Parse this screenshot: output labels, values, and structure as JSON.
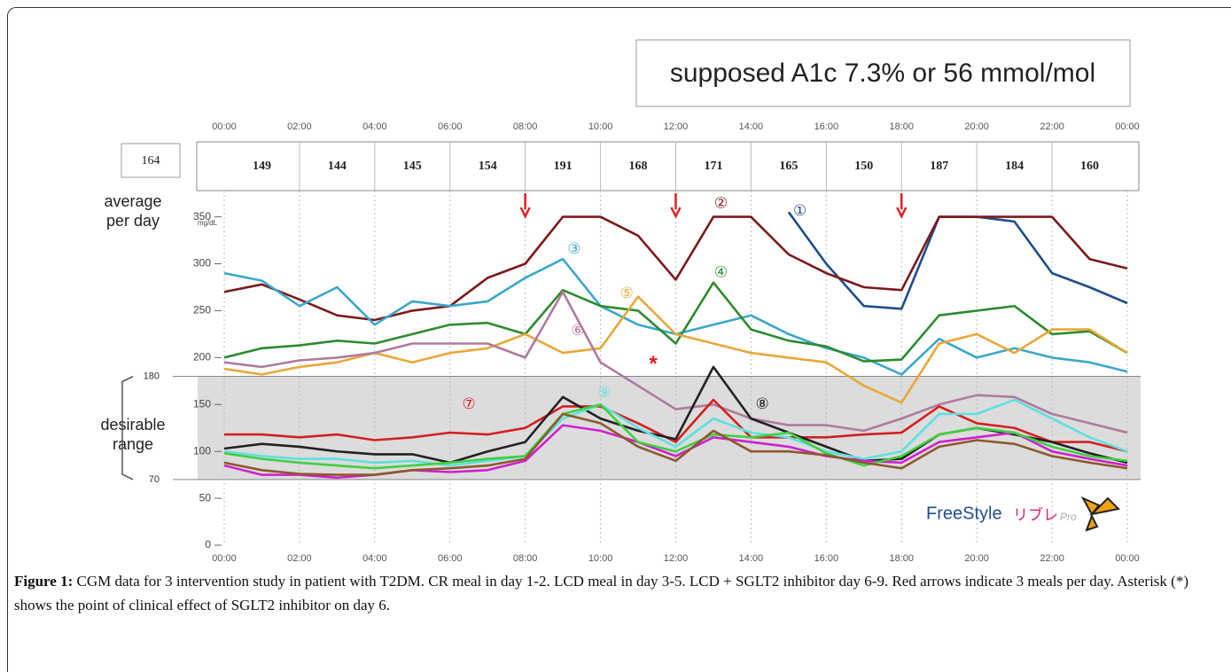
{
  "chart_data": {
    "type": "line",
    "headline": "supposed A1c 7.3% or 56 mmol/mol",
    "row_label": "average per day",
    "y_unit": "mg/dL",
    "range_label": "desirable range",
    "overall_average": 164,
    "period_averages": [
      149,
      144,
      145,
      154,
      191,
      168,
      171,
      165,
      150,
      187,
      184,
      160
    ],
    "target_range": [
      70,
      180
    ],
    "meal_arrows": [
      8,
      12,
      18
    ],
    "asterisk": "*",
    "logo": {
      "brand": "FreeStyle",
      "product": "リブレ",
      "suffix": "Pro"
    },
    "x": [
      0,
      1,
      2,
      3,
      4,
      5,
      6,
      7,
      8,
      9,
      10,
      11,
      12,
      13,
      14,
      15,
      16,
      17,
      18,
      19,
      20,
      21,
      22,
      23,
      24
    ],
    "xlim": [
      0,
      24
    ],
    "xticks": [
      {
        "value": 0,
        "label": "00:00"
      },
      {
        "value": 2,
        "label": "02:00"
      },
      {
        "value": 4,
        "label": "04:00"
      },
      {
        "value": 6,
        "label": "06:00"
      },
      {
        "value": 8,
        "label": "08:00"
      },
      {
        "value": 10,
        "label": "10:00"
      },
      {
        "value": 12,
        "label": "12:00"
      },
      {
        "value": 14,
        "label": "14:00"
      },
      {
        "value": 16,
        "label": "16:00"
      },
      {
        "value": 18,
        "label": "18:00"
      },
      {
        "value": 20,
        "label": "20:00"
      },
      {
        "value": 22,
        "label": "22:00"
      },
      {
        "value": 24,
        "label": "00:00"
      }
    ],
    "ylim": [
      0,
      378
    ],
    "yticks": [
      0,
      50,
      100,
      150,
      200,
      250,
      300,
      350
    ],
    "series": [
      {
        "name": "①",
        "color": "#1f4e8c",
        "values": [
          null,
          null,
          null,
          null,
          null,
          null,
          null,
          null,
          null,
          null,
          null,
          null,
          null,
          null,
          null,
          355,
          300,
          255,
          252,
          350,
          350,
          345,
          290,
          275,
          258
        ]
      },
      {
        "name": "②",
        "color": "#7b1a1a",
        "values": [
          270,
          278,
          262,
          245,
          240,
          250,
          255,
          285,
          300,
          350,
          350,
          330,
          283,
          350,
          350,
          310,
          290,
          275,
          272,
          350,
          350,
          350,
          350,
          305,
          295
        ]
      },
      {
        "name": "③",
        "color": "#3ba7c9",
        "values": [
          290,
          282,
          255,
          275,
          235,
          260,
          255,
          260,
          285,
          305,
          255,
          235,
          225,
          235,
          245,
          225,
          210,
          200,
          182,
          220,
          200,
          210,
          200,
          195,
          185
        ]
      },
      {
        "name": "④",
        "color": "#2e8b2e",
        "values": [
          200,
          210,
          213,
          218,
          215,
          225,
          235,
          237,
          225,
          272,
          255,
          250,
          215,
          280,
          230,
          218,
          212,
          196,
          198,
          245,
          250,
          255,
          225,
          228,
          205
        ]
      },
      {
        "name": "⑤",
        "color": "#e8a838",
        "values": [
          188,
          182,
          190,
          195,
          205,
          195,
          205,
          210,
          225,
          205,
          210,
          265,
          225,
          215,
          205,
          200,
          195,
          170,
          152,
          215,
          225,
          205,
          230,
          230,
          205
        ]
      },
      {
        "name": "⑥",
        "color": "#b07aa0",
        "values": [
          195,
          190,
          197,
          200,
          205,
          215,
          215,
          215,
          200,
          270,
          195,
          170,
          145,
          150,
          135,
          128,
          128,
          122,
          135,
          150,
          160,
          158,
          140,
          130,
          120
        ]
      },
      {
        "name": "⑦",
        "color": "#d42020",
        "values": [
          118,
          118,
          115,
          118,
          112,
          115,
          120,
          118,
          125,
          148,
          148,
          130,
          110,
          155,
          115,
          115,
          115,
          118,
          120,
          148,
          130,
          125,
          110,
          110,
          100
        ]
      },
      {
        "name": "⑧",
        "color": "#222222",
        "values": [
          103,
          108,
          105,
          100,
          97,
          97,
          88,
          100,
          110,
          158,
          135,
          122,
          113,
          190,
          135,
          120,
          105,
          90,
          92,
          118,
          125,
          118,
          110,
          98,
          88
        ]
      },
      {
        "name": "⑨",
        "color": "#5fe0e0",
        "values": [
          100,
          95,
          92,
          92,
          88,
          90,
          85,
          90,
          95,
          135,
          150,
          125,
          105,
          135,
          120,
          115,
          100,
          92,
          100,
          140,
          140,
          155,
          135,
          115,
          100
        ]
      },
      {
        "color": "#d020d0",
        "values": [
          85,
          75,
          75,
          72,
          75,
          80,
          78,
          80,
          90,
          128,
          122,
          110,
          95,
          115,
          110,
          105,
          95,
          90,
          88,
          110,
          115,
          120,
          100,
          92,
          85
        ]
      },
      {
        "color": "#40d040",
        "values": [
          98,
          92,
          88,
          85,
          82,
          85,
          88,
          92,
          95,
          140,
          150,
          110,
          100,
          118,
          115,
          120,
          98,
          85,
          95,
          118,
          125,
          120,
          105,
          95,
          90
        ]
      },
      {
        "color": "#8b5a2b",
        "values": [
          88,
          80,
          76,
          75,
          75,
          80,
          82,
          85,
          92,
          140,
          130,
          105,
          90,
          122,
          100,
          100,
          96,
          88,
          82,
          105,
          112,
          108,
          95,
          88,
          82
        ]
      }
    ]
  },
  "figure_caption": {
    "label": "Figure 1:",
    "text": "CGM data for 3 intervention study in patient with T2DM. CR meal in day 1-2. LCD meal in day 3-5. LCD + SGLT2 inhibitor day 6-9. Red arrows indicate 3 meals per day. Asterisk (*) shows the point of clinical effect of SGLT2 inhibitor on day 6."
  }
}
